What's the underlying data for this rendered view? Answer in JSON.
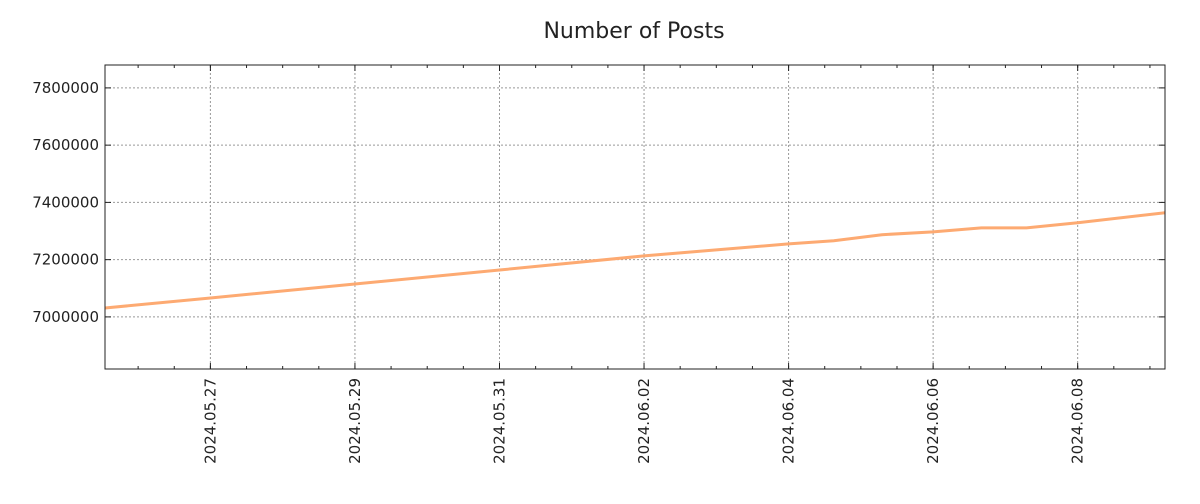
{
  "chart_data": {
    "type": "line",
    "title": "Number of Posts",
    "xlabel": "",
    "ylabel": "",
    "grid": true,
    "legend": "none",
    "xlim": [
      "2024-05-25T13:00",
      "2024-06-09T05:00"
    ],
    "ylim": [
      6818000,
      7880000
    ],
    "x_ticks": [
      "2024-05-27",
      "2024-05-29",
      "2024-05-31",
      "2024-06-02",
      "2024-06-04",
      "2024-06-06",
      "2024-06-08"
    ],
    "x_tick_labels": [
      "2024.05.27",
      "2024.05.29",
      "2024.05.31",
      "2024.06.02",
      "2024.06.04",
      "2024.06.06",
      "2024.06.08"
    ],
    "y_ticks": [
      7000000,
      7200000,
      7400000,
      7600000,
      7800000
    ],
    "y_tick_labels": [
      "7000000",
      "7200000",
      "7400000",
      "7600000",
      "7800000"
    ],
    "series": [
      {
        "name": "Number of Posts",
        "color": "#fdaa72",
        "x": [
          "2024-05-25T13:00",
          "2024-05-27T00:00",
          "2024-05-29T00:00",
          "2024-05-31T00:00",
          "2024-06-02T00:00",
          "2024-06-03T00:00",
          "2024-06-04T00:00",
          "2024-06-04T15:00",
          "2024-06-05T07:00",
          "2024-06-06T00:00",
          "2024-06-06T16:00",
          "2024-06-07T07:00",
          "2024-06-08T00:00",
          "2024-06-09T05:00"
        ],
        "values": [
          7031000,
          7066000,
          7115000,
          7164000,
          7213000,
          7234000,
          7255000,
          7266000,
          7287000,
          7297000,
          7311000,
          7311000,
          7329000,
          7364000
        ]
      }
    ]
  }
}
